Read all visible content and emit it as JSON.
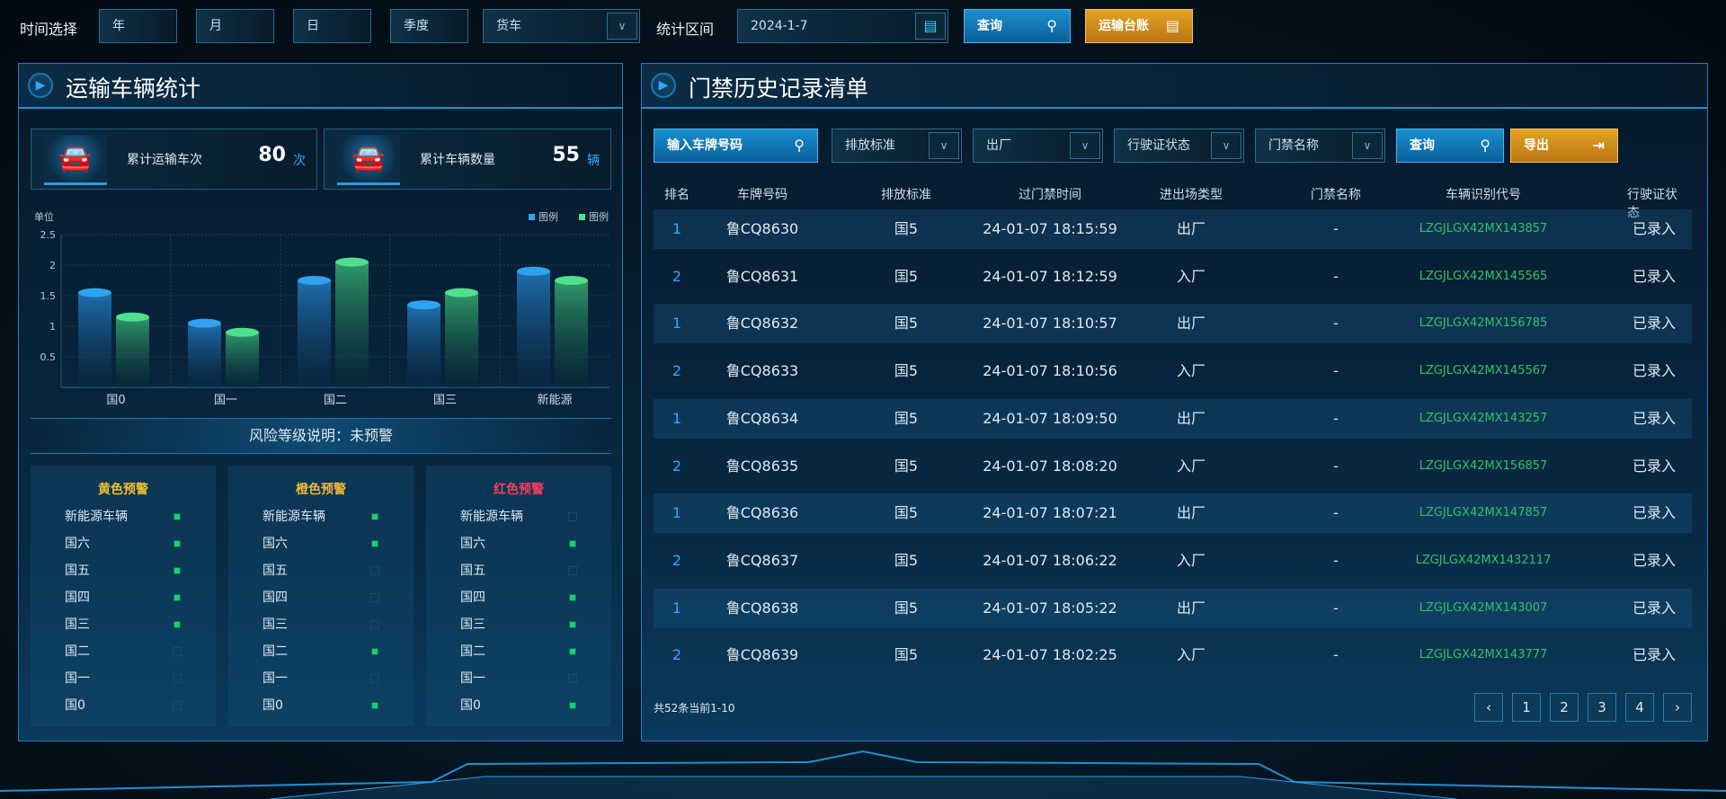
{
  "topbar": {
    "time_label": "时间选择",
    "year": "年",
    "month": "月",
    "day": "日",
    "quarter": "季度",
    "vehicle_type": "货车",
    "range_label": "统计区间",
    "date": "2024-1-7",
    "query": "查询",
    "ledger": "运输台账"
  },
  "left": {
    "title": "运输车辆统计",
    "stats": [
      {
        "label": "累计运输车次",
        "value": "80",
        "unit": "次"
      },
      {
        "label": "累计车辆数量",
        "value": "55",
        "unit": "辆"
      }
    ],
    "risk_title": "风险等级说明：未预警",
    "levels": [
      {
        "title": "黄色预警",
        "color": "#f2c230",
        "items": [
          [
            "新能源车辆",
            true
          ],
          [
            "国六",
            true
          ],
          [
            "国五",
            true
          ],
          [
            "国四",
            true
          ],
          [
            "国三",
            true
          ],
          [
            "国二",
            false
          ],
          [
            "国一",
            false
          ],
          [
            "国0",
            false
          ]
        ]
      },
      {
        "title": "橙色预警",
        "color": "#f2b93a",
        "items": [
          [
            "新能源车辆",
            true
          ],
          [
            "国六",
            true
          ],
          [
            "国五",
            false
          ],
          [
            "国四",
            false
          ],
          [
            "国三",
            false
          ],
          [
            "国二",
            true
          ],
          [
            "国一",
            false
          ],
          [
            "国0",
            true
          ]
        ]
      },
      {
        "title": "红色预警",
        "color": "#ff3b5c",
        "items": [
          [
            "新能源车辆",
            false
          ],
          [
            "国六",
            true
          ],
          [
            "国五",
            false
          ],
          [
            "国四",
            true
          ],
          [
            "国三",
            true
          ],
          [
            "国二",
            true
          ],
          [
            "国一",
            false
          ],
          [
            "国0",
            true
          ]
        ]
      }
    ]
  },
  "chart_data": {
    "type": "bar",
    "ylabel": "单位",
    "categories": [
      "国0",
      "国一",
      "国二",
      "国三",
      "新能源"
    ],
    "ylim": [
      0,
      2.5
    ],
    "yticks": [
      "0.5",
      "1",
      "1.5",
      "2",
      "2.5"
    ],
    "grid": true,
    "legend_position": "top-right",
    "series": [
      {
        "name": "图例",
        "color": "#2fa3f0",
        "values": [
          1.55,
          1.05,
          1.75,
          1.35,
          1.9
        ]
      },
      {
        "name": "图例",
        "color": "#4fe08f",
        "values": [
          1.15,
          0.9,
          2.05,
          1.55,
          1.75
        ]
      }
    ]
  },
  "right": {
    "title": "门禁历史记录清单",
    "filters": {
      "plate_placeholder": "输入车牌号码",
      "emission": "排放标准",
      "direction": "出厂",
      "license": "行驶证状态",
      "gate": "门禁名称",
      "query": "查询",
      "export": "导出"
    },
    "columns": [
      "排名",
      "车牌号码",
      "排放标准",
      "过门禁时间",
      "进出场类型",
      "门禁名称",
      "车辆识别代号",
      "行驶证状态"
    ],
    "rows": [
      [
        "1",
        "鲁CQ8630",
        "国5",
        "24-01-07 18:15:59",
        "出厂",
        "-",
        "LZGJLGX42MX143857",
        "已录入"
      ],
      [
        "2",
        "鲁CQ8631",
        "国5",
        "24-01-07 18:12:59",
        "入厂",
        "-",
        "LZGJLGX42MX145565",
        "已录入"
      ],
      [
        "1",
        "鲁CQ8632",
        "国5",
        "24-01-07 18:10:57",
        "出厂",
        "-",
        "LZGJLGX42MX156785",
        "已录入"
      ],
      [
        "2",
        "鲁CQ8633",
        "国5",
        "24-01-07 18:10:56",
        "入厂",
        "-",
        "LZGJLGX42MX145567",
        "已录入"
      ],
      [
        "1",
        "鲁CQ8634",
        "国5",
        "24-01-07 18:09:50",
        "出厂",
        "-",
        "LZGJLGX42MX143257",
        "已录入"
      ],
      [
        "2",
        "鲁CQ8635",
        "国5",
        "24-01-07 18:08:20",
        "入厂",
        "-",
        "LZGJLGX42MX156857",
        "已录入"
      ],
      [
        "1",
        "鲁CQ8636",
        "国5",
        "24-01-07 18:07:21",
        "出厂",
        "-",
        "LZGJLGX42MX147857",
        "已录入"
      ],
      [
        "2",
        "鲁CQ8637",
        "国5",
        "24-01-07 18:06:22",
        "入厂",
        "-",
        "LZGJLGX42MX1432117",
        "已录入"
      ],
      [
        "1",
        "鲁CQ8638",
        "国5",
        "24-01-07 18:05:22",
        "出厂",
        "-",
        "LZGJLGX42MX143007",
        "已录入"
      ],
      [
        "2",
        "鲁CQ8639",
        "国5",
        "24-01-07 18:02:25",
        "入厂",
        "-",
        "LZGJLGX42MX143777",
        "已录入"
      ]
    ],
    "footer": "共52条当前1-10",
    "pages": [
      "‹",
      "1",
      "2",
      "3",
      "4",
      "›"
    ]
  }
}
